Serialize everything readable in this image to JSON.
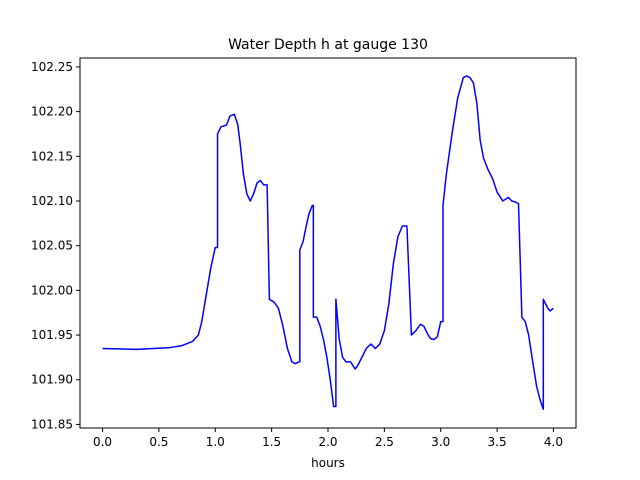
{
  "chart_data": {
    "type": "line",
    "title": "Water Depth h at gauge 130",
    "xlabel": "hours",
    "ylabel": "",
    "xlim": [
      -0.2,
      4.2
    ],
    "ylim": [
      101.846,
      102.26
    ],
    "xticks": [
      0.0,
      0.5,
      1.0,
      1.5,
      2.0,
      2.5,
      3.0,
      3.5,
      4.0
    ],
    "xtick_labels": [
      "0.0",
      "0.5",
      "1.0",
      "1.5",
      "2.0",
      "2.5",
      "3.0",
      "3.5",
      "4.0"
    ],
    "yticks": [
      101.85,
      101.9,
      101.95,
      102.0,
      102.05,
      102.1,
      102.15,
      102.2,
      102.25
    ],
    "ytick_labels": [
      "101.85",
      "101.90",
      "101.95",
      "102.00",
      "102.05",
      "102.10",
      "102.15",
      "102.20",
      "102.25"
    ],
    "grid": false,
    "series": [
      {
        "color": "#0000ff",
        "x": [
          0.0,
          0.3,
          0.6,
          0.7,
          0.8,
          0.85,
          0.88,
          0.92,
          0.96,
          1.0,
          1.02,
          1.02,
          1.05,
          1.1,
          1.13,
          1.17,
          1.2,
          1.22,
          1.25,
          1.28,
          1.31,
          1.34,
          1.37,
          1.4,
          1.43,
          1.46,
          1.48,
          1.48,
          1.52,
          1.56,
          1.6,
          1.64,
          1.68,
          1.71,
          1.74,
          1.75,
          1.75,
          1.78,
          1.8,
          1.83,
          1.86,
          1.87,
          1.87,
          1.9,
          1.93,
          1.96,
          1.99,
          2.02,
          2.05,
          2.07,
          2.07,
          2.1,
          2.13,
          2.16,
          2.2,
          2.24,
          2.26,
          2.3,
          2.34,
          2.38,
          2.42,
          2.46,
          2.5,
          2.54,
          2.58,
          2.62,
          2.66,
          2.7,
          2.74,
          2.74,
          2.78,
          2.82,
          2.85,
          2.88,
          2.91,
          2.94,
          2.97,
          3.0,
          3.02,
          3.02,
          3.05,
          3.1,
          3.15,
          3.2,
          3.23,
          3.26,
          3.29,
          3.32,
          3.35,
          3.38,
          3.42,
          3.46,
          3.5,
          3.55,
          3.6,
          3.63,
          3.66,
          3.69,
          3.72,
          3.72,
          3.75,
          3.78,
          3.81,
          3.85,
          3.88,
          3.91,
          3.91,
          3.93,
          3.95,
          3.97,
          4.0
        ],
        "y": [
          101.935,
          101.934,
          101.936,
          101.938,
          101.943,
          101.95,
          101.965,
          101.995,
          102.025,
          102.048,
          102.048,
          102.175,
          102.183,
          102.185,
          102.195,
          102.197,
          102.185,
          102.165,
          102.13,
          102.108,
          102.1,
          102.108,
          102.12,
          102.123,
          102.118,
          102.118,
          101.99,
          101.99,
          101.987,
          101.98,
          101.96,
          101.935,
          101.92,
          101.918,
          101.92,
          101.92,
          102.045,
          102.055,
          102.068,
          102.085,
          102.095,
          102.095,
          101.97,
          101.97,
          101.96,
          101.945,
          101.925,
          101.9,
          101.87,
          101.87,
          101.99,
          101.945,
          101.925,
          101.92,
          101.92,
          101.912,
          101.915,
          101.925,
          101.935,
          101.94,
          101.935,
          101.94,
          101.955,
          101.985,
          102.03,
          102.06,
          102.072,
          102.072,
          101.95,
          101.95,
          101.955,
          101.962,
          101.96,
          101.952,
          101.946,
          101.945,
          101.948,
          101.965,
          101.965,
          102.095,
          102.13,
          102.175,
          102.215,
          102.238,
          102.24,
          102.238,
          102.232,
          102.21,
          102.168,
          102.148,
          102.135,
          102.125,
          102.11,
          102.1,
          102.104,
          102.1,
          102.099,
          102.097,
          101.97,
          101.97,
          101.965,
          101.95,
          101.925,
          101.893,
          101.878,
          101.867,
          101.99,
          101.985,
          101.98,
          101.977,
          101.98
        ]
      }
    ]
  }
}
